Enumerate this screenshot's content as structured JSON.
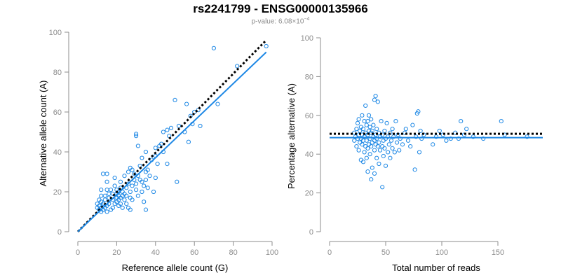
{
  "title": "rs2241799 - ENSG00000135966",
  "subtitle": {
    "prefix": "p-value: 6.08",
    "times": "×",
    "base": "10",
    "exponent": "−4"
  },
  "colors": {
    "points": "#1e88e5",
    "fit_line": "#1e88e5",
    "reference_line": "#000000",
    "axis": "#8c8c8c",
    "tick_labels": "#8c8c8c",
    "title": "#000000"
  },
  "chart_data": [
    {
      "type": "scatter",
      "title": "",
      "xlabel": "Reference allele count (G)",
      "ylabel": "Alternative allele count (A)",
      "xlim": [
        0,
        100
      ],
      "ylim": [
        0,
        100
      ],
      "xticks": [
        0,
        20,
        40,
        60,
        80,
        100
      ],
      "yticks": [
        0,
        20,
        40,
        60,
        80,
        100
      ],
      "grid": false,
      "lines": [
        {
          "style": "dotted",
          "color": "#000000",
          "x": [
            0,
            97
          ],
          "y": [
            0,
            96
          ]
        },
        {
          "style": "solid",
          "color": "#1e88e5",
          "x": [
            0,
            97
          ],
          "y": [
            0,
            90
          ]
        }
      ],
      "points": [
        [
          10,
          12
        ],
        [
          10,
          14
        ],
        [
          11,
          11
        ],
        [
          11,
          13
        ],
        [
          11,
          16
        ],
        [
          12,
          10
        ],
        [
          12,
          12
        ],
        [
          12,
          15
        ],
        [
          12,
          18
        ],
        [
          12,
          21
        ],
        [
          13,
          11
        ],
        [
          13,
          13
        ],
        [
          13,
          14
        ],
        [
          13,
          29
        ],
        [
          14,
          12
        ],
        [
          14,
          16
        ],
        [
          14,
          18
        ],
        [
          15,
          10
        ],
        [
          15,
          13
        ],
        [
          15,
          21
        ],
        [
          15,
          25
        ],
        [
          15,
          29
        ],
        [
          16,
          14
        ],
        [
          16,
          17
        ],
        [
          16,
          19
        ],
        [
          17,
          11
        ],
        [
          17,
          21
        ],
        [
          18,
          12
        ],
        [
          18,
          16
        ],
        [
          18,
          19
        ],
        [
          19,
          14
        ],
        [
          19,
          23
        ],
        [
          19,
          27
        ],
        [
          20,
          15
        ],
        [
          20,
          17
        ],
        [
          20,
          19
        ],
        [
          20,
          21
        ],
        [
          21,
          13
        ],
        [
          21,
          16
        ],
        [
          21,
          18
        ],
        [
          21,
          20
        ],
        [
          22,
          14
        ],
        [
          22,
          17
        ],
        [
          22,
          22
        ],
        [
          22,
          25
        ],
        [
          23,
          12
        ],
        [
          23,
          18
        ],
        [
          23,
          20
        ],
        [
          24,
          16
        ],
        [
          24,
          19
        ],
        [
          24,
          28
        ],
        [
          25,
          14
        ],
        [
          25,
          18
        ],
        [
          25,
          22
        ],
        [
          26,
          12
        ],
        [
          26,
          24
        ],
        [
          26,
          30
        ],
        [
          27,
          11
        ],
        [
          27,
          17
        ],
        [
          27,
          20
        ],
        [
          27,
          32
        ],
        [
          28,
          16
        ],
        [
          28,
          23
        ],
        [
          28,
          31
        ],
        [
          29,
          26
        ],
        [
          29,
          29
        ],
        [
          30,
          21
        ],
        [
          30,
          24
        ],
        [
          30,
          48
        ],
        [
          30,
          49
        ],
        [
          31,
          18
        ],
        [
          31,
          28
        ],
        [
          31,
          43
        ],
        [
          32,
          26
        ],
        [
          32,
          33
        ],
        [
          33,
          20
        ],
        [
          33,
          25
        ],
        [
          33,
          37
        ],
        [
          34,
          15
        ],
        [
          34,
          23
        ],
        [
          35,
          11
        ],
        [
          35,
          26
        ],
        [
          35,
          30
        ],
        [
          35,
          40
        ],
        [
          36,
          22
        ],
        [
          36,
          31
        ],
        [
          37,
          28
        ],
        [
          38,
          36
        ],
        [
          39,
          20
        ],
        [
          40,
          27
        ],
        [
          40,
          38
        ],
        [
          40,
          42
        ],
        [
          41,
          34
        ],
        [
          42,
          43
        ],
        [
          43,
          44
        ],
        [
          44,
          40
        ],
        [
          44,
          50
        ],
        [
          46,
          51
        ],
        [
          46,
          34
        ],
        [
          47,
          48
        ],
        [
          48,
          52
        ],
        [
          50,
          66
        ],
        [
          51,
          25
        ],
        [
          52,
          53
        ],
        [
          55,
          50
        ],
        [
          56,
          64
        ],
        [
          57,
          45
        ],
        [
          58,
          58
        ],
        [
          59,
          54
        ],
        [
          60,
          60
        ],
        [
          62,
          61
        ],
        [
          63,
          53
        ],
        [
          70,
          92
        ],
        [
          72,
          64
        ],
        [
          82,
          83
        ],
        [
          97,
          93
        ]
      ]
    },
    {
      "type": "scatter",
      "title": "",
      "xlabel": "Total number of reads",
      "ylabel": "Percentage alternative (A)",
      "xlim": [
        0,
        190
      ],
      "ylim": [
        0,
        100
      ],
      "xticks": [
        0,
        50,
        100,
        150
      ],
      "yticks": [
        0,
        20,
        40,
        60,
        80,
        100
      ],
      "grid": false,
      "lines": [
        {
          "style": "dotted",
          "color": "#000000",
          "x": [
            0,
            190
          ],
          "y": [
            50.5,
            50.5
          ]
        },
        {
          "style": "solid",
          "color": "#1e88e5",
          "x": [
            0,
            190
          ],
          "y": [
            48.5,
            48.5
          ]
        }
      ],
      "points": [
        [
          22,
          47
        ],
        [
          22,
          51
        ],
        [
          23,
          49
        ],
        [
          24,
          44
        ],
        [
          24,
          53
        ],
        [
          25,
          48
        ],
        [
          25,
          56
        ],
        [
          26,
          42
        ],
        [
          26,
          50
        ],
        [
          26,
          58
        ],
        [
          27,
          46
        ],
        [
          27,
          52
        ],
        [
          28,
          37
        ],
        [
          28,
          48
        ],
        [
          28,
          54
        ],
        [
          29,
          45
        ],
        [
          29,
          50
        ],
        [
          29,
          60
        ],
        [
          30,
          36
        ],
        [
          30,
          47
        ],
        [
          30,
          53
        ],
        [
          31,
          41
        ],
        [
          31,
          49
        ],
        [
          31,
          57
        ],
        [
          32,
          44
        ],
        [
          32,
          51
        ],
        [
          32,
          65
        ],
        [
          33,
          38
        ],
        [
          33,
          47
        ],
        [
          33,
          55
        ],
        [
          34,
          31
        ],
        [
          34,
          43
        ],
        [
          34,
          50
        ],
        [
          34,
          57
        ],
        [
          35,
          45
        ],
        [
          35,
          52
        ],
        [
          35,
          60
        ],
        [
          36,
          40
        ],
        [
          36,
          48
        ],
        [
          36,
          54
        ],
        [
          37,
          27
        ],
        [
          37,
          44
        ],
        [
          37,
          51
        ],
        [
          37,
          58
        ],
        [
          38,
          33
        ],
        [
          38,
          46
        ],
        [
          38,
          52
        ],
        [
          39,
          49
        ],
        [
          39,
          55
        ],
        [
          40,
          30
        ],
        [
          40,
          42
        ],
        [
          40,
          47
        ],
        [
          40,
          68
        ],
        [
          41,
          45
        ],
        [
          41,
          50
        ],
        [
          41,
          70
        ],
        [
          42,
          38
        ],
        [
          42,
          48
        ],
        [
          42,
          53
        ],
        [
          43,
          44
        ],
        [
          43,
          67
        ],
        [
          44,
          35
        ],
        [
          44,
          46
        ],
        [
          44,
          51
        ],
        [
          45,
          42
        ],
        [
          45,
          49
        ],
        [
          46,
          57
        ],
        [
          47,
          23
        ],
        [
          47,
          44
        ],
        [
          47,
          50
        ],
        [
          48,
          39
        ],
        [
          48,
          47
        ],
        [
          49,
          43
        ],
        [
          49,
          52
        ],
        [
          50,
          34
        ],
        [
          50,
          48
        ],
        [
          51,
          56
        ],
        [
          52,
          41
        ],
        [
          52,
          49
        ],
        [
          53,
          45
        ],
        [
          54,
          38
        ],
        [
          54,
          51
        ],
        [
          55,
          47
        ],
        [
          56,
          43
        ],
        [
          56,
          53
        ],
        [
          57,
          49
        ],
        [
          58,
          41
        ],
        [
          59,
          57
        ],
        [
          60,
          46
        ],
        [
          61,
          50
        ],
        [
          62,
          42
        ],
        [
          63,
          48
        ],
        [
          65,
          45
        ],
        [
          67,
          51
        ],
        [
          68,
          53
        ],
        [
          70,
          47
        ],
        [
          72,
          44
        ],
        [
          74,
          55
        ],
        [
          76,
          32
        ],
        [
          77,
          49
        ],
        [
          78,
          61
        ],
        [
          79,
          62
        ],
        [
          80,
          41
        ],
        [
          81,
          52
        ],
        [
          82,
          48
        ],
        [
          84,
          50
        ],
        [
          92,
          45
        ],
        [
          95,
          49
        ],
        [
          98,
          52
        ],
        [
          101,
          50
        ],
        [
          104,
          47
        ],
        [
          108,
          48
        ],
        [
          112,
          51
        ],
        [
          115,
          48
        ],
        [
          117,
          57
        ],
        [
          120,
          50
        ],
        [
          122,
          53
        ],
        [
          128,
          49
        ],
        [
          137,
          48
        ],
        [
          153,
          57
        ],
        [
          156,
          50
        ],
        [
          176,
          49
        ]
      ]
    }
  ]
}
